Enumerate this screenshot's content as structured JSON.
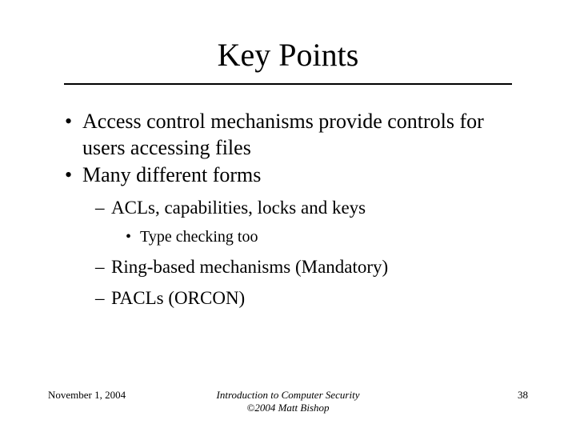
{
  "slide": {
    "title": "Key Points",
    "bullets": {
      "item1": "Access control mechanisms provide controls for users accessing files",
      "item2": "Many different forms",
      "sub1": "ACLs, capabilities, locks and keys",
      "subsub1": "Type checking too",
      "sub2": "Ring-based mechanisms (Mandatory)",
      "sub3": "PACLs (ORCON)"
    },
    "footer": {
      "date": "November 1, 2004",
      "center_line1": "Introduction to Computer Security",
      "center_line2": "©2004 Matt Bishop",
      "page": "38"
    }
  },
  "styling": {
    "background_color": "#ffffff",
    "text_color": "#000000",
    "font_family": "Times New Roman",
    "title_fontsize": 40,
    "level1_fontsize": 26,
    "level2_fontsize": 23,
    "level3_fontsize": 20,
    "footer_fontsize": 13,
    "underline_color": "#000000",
    "underline_width": 2
  }
}
